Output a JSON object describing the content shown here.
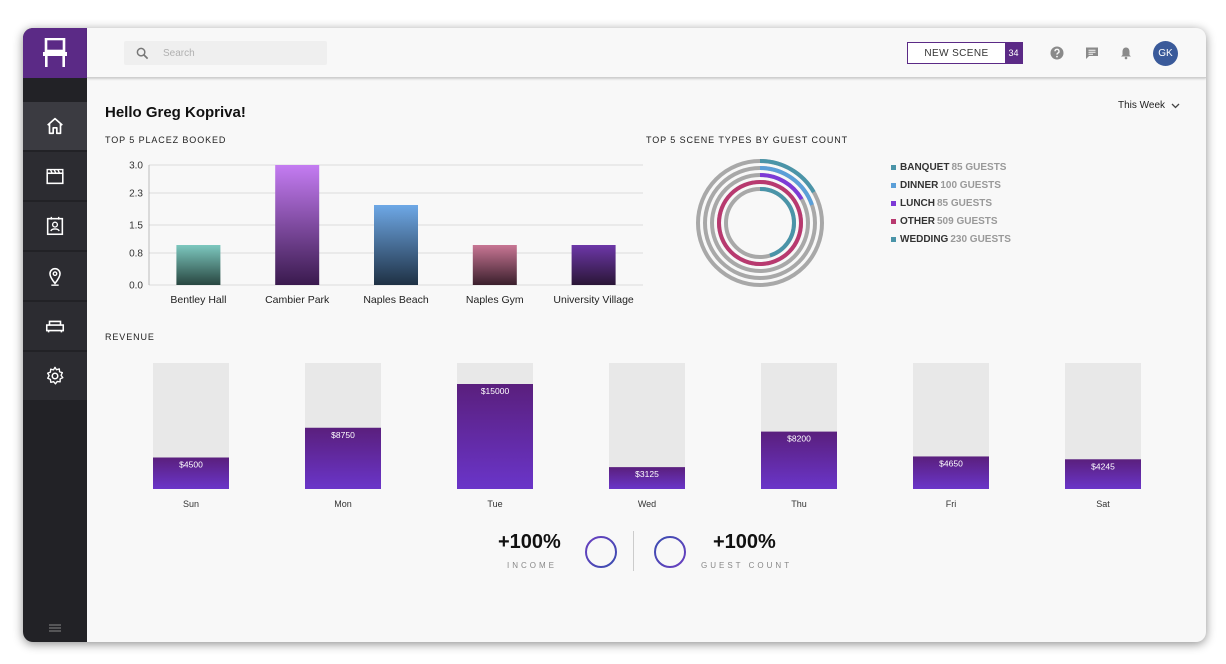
{
  "header": {
    "search_placeholder": "Search",
    "new_scene_label": "NEW SCENE",
    "new_scene_count": "34",
    "avatar_initials": "GK"
  },
  "sidebar": {
    "items": [
      {
        "name": "home",
        "icon": "home-icon",
        "active": true
      },
      {
        "name": "scenes",
        "icon": "clapperboard-icon",
        "active": false
      },
      {
        "name": "contacts",
        "icon": "contact-card-icon",
        "active": false
      },
      {
        "name": "places",
        "icon": "location-pin-icon",
        "active": false
      },
      {
        "name": "furniture",
        "icon": "sofa-icon",
        "active": false
      },
      {
        "name": "settings",
        "icon": "gear-icon",
        "active": false
      }
    ]
  },
  "greeting": "Hello Greg Kopriva!",
  "period_selector": "This Week",
  "placez_section_title": "TOP 5 PLACEZ BOOKED",
  "scene_types_section_title": "TOP 5 SCENE TYPES BY GUEST COUNT",
  "revenue_section_title": "REVENUE",
  "scene_types": [
    {
      "name": "BANQUET",
      "guests": "85 GUESTS",
      "color": "#4a94a8"
    },
    {
      "name": "DINNER",
      "guests": "100 GUESTS",
      "color": "#5b9fd8"
    },
    {
      "name": "LUNCH",
      "guests": "85 GUESTS",
      "color": "#7d3ad6"
    },
    {
      "name": "OTHER",
      "guests": "509 GUESTS",
      "color": "#b8396f"
    },
    {
      "name": "WEDDING",
      "guests": "230 GUESTS",
      "color": "#4a94a8"
    }
  ],
  "kpis": {
    "income_value": "+100%",
    "income_label": "INCOME",
    "guest_value": "+100%",
    "guest_label": "GUEST COUNT"
  },
  "chart_data": [
    {
      "type": "bar",
      "title": "TOP 5 PLACEZ BOOKED",
      "categories": [
        "Bentley Hall",
        "Cambier Park",
        "Naples Beach",
        "Naples Gym",
        "University Village"
      ],
      "values": [
        1,
        3,
        2,
        1,
        1
      ],
      "y_ticks": [
        "3.0",
        "2.3",
        "1.5",
        "0.8",
        "0.0"
      ],
      "ylim": [
        0,
        3
      ],
      "grid": true,
      "colors": [
        [
          "#7dc8bf",
          "#284640"
        ],
        [
          "#c47cf2",
          "#3a1a4e"
        ],
        [
          "#6ea8e6",
          "#1f3144"
        ],
        [
          "#c87694",
          "#3a1f2c"
        ],
        [
          "#6d37a8",
          "#2a1636"
        ]
      ]
    },
    {
      "type": "bar",
      "title": "REVENUE",
      "categories": [
        "Sun",
        "Mon",
        "Tue",
        "Wed",
        "Thu",
        "Fri",
        "Sat"
      ],
      "values": [
        4500,
        8750,
        15000,
        3125,
        8200,
        4650,
        4245
      ],
      "value_labels": [
        "$4500",
        "$8750",
        "$15000",
        "$3125",
        "$8200",
        "$4650",
        "$4245"
      ],
      "ylim": [
        0,
        18000
      ],
      "grid": false
    }
  ]
}
